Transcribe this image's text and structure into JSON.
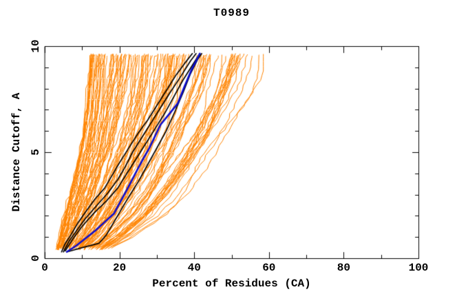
{
  "chart_data": {
    "type": "line",
    "title": "T0989",
    "xlabel": "Percent of Residues (CA)",
    "ylabel": "Distance Cutoff, A",
    "xlim": [
      0,
      100
    ],
    "ylim": [
      0,
      10
    ],
    "grid": false,
    "legend": "none",
    "x_ticks": {
      "major": [
        0,
        20,
        40,
        60,
        80,
        100
      ],
      "minor": [
        10,
        30,
        50,
        70,
        90
      ]
    },
    "y_ticks": {
      "major": [
        0,
        5,
        10
      ],
      "minor": [
        1,
        2,
        3,
        4,
        6,
        7,
        8,
        9
      ]
    },
    "colors": {
      "bundle": "#FF8400",
      "highlight_black": "#000000",
      "highlight_blue": "#0D0DCD",
      "axis": "#000000",
      "background": "#FFFFFF"
    },
    "bundle": {
      "description": "dense family of model curves, percent of residues (x) within distance cutoff (y)",
      "count": 120,
      "outlier_count": 4,
      "y_start": 0.45,
      "y_end": 9.65,
      "left_envelope": [
        [
          3.2,
          0.45
        ],
        [
          4.0,
          1
        ],
        [
          5.2,
          2
        ],
        [
          6.8,
          3
        ],
        [
          8.3,
          4
        ],
        [
          9.6,
          5
        ],
        [
          10.4,
          6
        ],
        [
          11.0,
          7
        ],
        [
          11.4,
          8
        ],
        [
          11.8,
          9
        ],
        [
          12.0,
          9.65
        ]
      ],
      "right_envelope": [
        [
          16,
          0.45
        ],
        [
          21,
          1
        ],
        [
          28,
          2
        ],
        [
          33,
          3
        ],
        [
          37,
          4
        ],
        [
          40.5,
          5
        ],
        [
          44,
          6
        ],
        [
          47,
          7
        ],
        [
          50,
          8
        ],
        [
          52,
          9
        ],
        [
          53,
          9.65
        ]
      ]
    },
    "highlighted_black": [
      [
        [
          4.5,
          0.3
        ],
        [
          5.5,
          0.7
        ],
        [
          7,
          1.1
        ],
        [
          9,
          1.7
        ],
        [
          11,
          2.2
        ],
        [
          13.5,
          2.8
        ],
        [
          16,
          3.3
        ],
        [
          18,
          3.9
        ],
        [
          20,
          4.5
        ],
        [
          22.5,
          5.2
        ],
        [
          25,
          5.9
        ],
        [
          27.5,
          6.5
        ],
        [
          30,
          7.2
        ],
        [
          32.5,
          7.9
        ],
        [
          35,
          8.6
        ],
        [
          37.5,
          9.2
        ],
        [
          39.5,
          9.65
        ]
      ],
      [
        [
          5,
          0.3
        ],
        [
          6.5,
          0.8
        ],
        [
          8.5,
          1.3
        ],
        [
          11,
          1.9
        ],
        [
          14,
          2.5
        ],
        [
          17,
          3.1
        ],
        [
          19.5,
          3.7
        ],
        [
          21.5,
          4.3
        ],
        [
          23.5,
          5.0
        ],
        [
          26,
          5.7
        ],
        [
          28.5,
          6.4
        ],
        [
          31,
          7.1
        ],
        [
          33.5,
          7.8
        ],
        [
          36.5,
          8.6
        ],
        [
          39,
          9.3
        ],
        [
          40.5,
          9.65
        ]
      ],
      [
        [
          5.5,
          0.35
        ],
        [
          7.5,
          0.9
        ],
        [
          10,
          1.5
        ],
        [
          13,
          2.1
        ],
        [
          16.5,
          2.7
        ],
        [
          19.5,
          3.3
        ],
        [
          22,
          4.0
        ],
        [
          24.5,
          4.7
        ],
        [
          27,
          5.4
        ],
        [
          29.5,
          6.1
        ],
        [
          32,
          6.8
        ],
        [
          34.5,
          7.6
        ],
        [
          37,
          8.4
        ],
        [
          39.5,
          9.1
        ],
        [
          41.5,
          9.65
        ]
      ],
      [
        [
          6,
          0.3
        ],
        [
          10,
          0.5
        ],
        [
          14.5,
          0.7
        ],
        [
          16.5,
          1.1
        ],
        [
          18.5,
          1.7
        ],
        [
          20.5,
          2.3
        ],
        [
          22.5,
          2.9
        ],
        [
          25,
          3.6
        ],
        [
          27.5,
          4.4
        ],
        [
          30,
          5.2
        ],
        [
          32.5,
          6.0
        ],
        [
          34.8,
          6.9
        ],
        [
          37,
          7.8
        ],
        [
          39,
          8.7
        ],
        [
          41,
          9.4
        ],
        [
          42,
          9.65
        ]
      ]
    ],
    "highlighted_blue": [
      [
        5.9,
        0.3
      ],
      [
        8.5,
        0.6
      ],
      [
        11,
        0.95
      ],
      [
        13.5,
        1.3
      ],
      [
        16,
        1.7
      ],
      [
        18.5,
        2.1
      ],
      [
        20.5,
        2.75
      ],
      [
        22.5,
        3.4
      ],
      [
        24.4,
        4.05
      ],
      [
        26.4,
        4.7
      ],
      [
        28,
        5.2
      ],
      [
        29.5,
        5.75
      ],
      [
        31,
        6.3
      ],
      [
        33.3,
        6.8
      ],
      [
        35.6,
        7.3
      ],
      [
        37.4,
        8.1
      ],
      [
        39.3,
        8.9
      ],
      [
        40.5,
        9.3
      ],
      [
        41.5,
        9.65
      ]
    ]
  }
}
